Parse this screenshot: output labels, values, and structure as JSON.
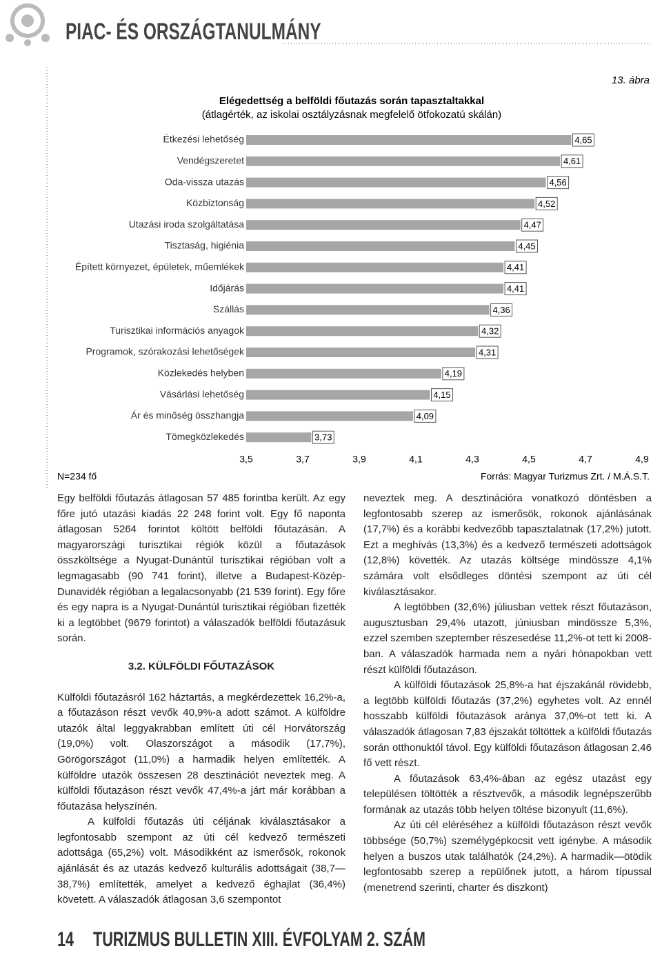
{
  "header": {
    "section": "PIAC- ÉS ORSZÁGTANULMÁNY"
  },
  "chart_data": {
    "type": "bar",
    "orientation": "horizontal",
    "figure_label": "13. ábra",
    "title": "Elégedettség a belföldi főutazás során tapasztaltakkal",
    "subtitle": "(átlagérték, az iskolai osztályzásnak megfelelő ötfokozatú skálán)",
    "categories": [
      "Étkezési lehetőség",
      "Vendégszeretet",
      "Oda-vissza utazás",
      "Közbiztonság",
      "Utazási iroda szolgáltatása",
      "Tisztaság, higiénia",
      "Épített környezet, épületek, műemlékek",
      "Időjárás",
      "Szállás",
      "Turisztikai információs anyagok",
      "Programok, szórakozási lehetőségek",
      "Közlekedés helyben",
      "Vásárlási lehetőség",
      "Ár és minőség összhangja",
      "Tömegközlekedés"
    ],
    "values": [
      4.65,
      4.61,
      4.56,
      4.52,
      4.47,
      4.45,
      4.41,
      4.41,
      4.36,
      4.32,
      4.31,
      4.19,
      4.15,
      4.09,
      3.73
    ],
    "value_labels": [
      "4,65",
      "4,61",
      "4,56",
      "4,52",
      "4,47",
      "4,45",
      "4,41",
      "4,41",
      "4,36",
      "4,32",
      "4,31",
      "4,19",
      "4,15",
      "4,09",
      "3,73"
    ],
    "color": "#a6a6a6",
    "xlim": [
      3.5,
      4.9
    ],
    "xticks": [
      {
        "value": 3.5,
        "label": "3,5"
      },
      {
        "value": 3.7,
        "label": "3,7"
      },
      {
        "value": 3.9,
        "label": "3,9"
      },
      {
        "value": 4.1,
        "label": "4,1"
      },
      {
        "value": 4.3,
        "label": "4,3"
      },
      {
        "value": 4.5,
        "label": "4,5"
      },
      {
        "value": 4.7,
        "label": "4,7"
      },
      {
        "value": 4.9,
        "label": "4,9"
      }
    ],
    "grid": false,
    "note": "N=234 fő",
    "source": "Forrás: Magyar Turizmus Zrt. / M.Á.S.T."
  },
  "left_column": {
    "paragraphs": [
      "Egy belföldi főutazás átlagosan 57 485 forintba került. Az egy főre jutó utazási kiadás 22 248 forint volt. Egy fő naponta átlagosan 5264 forintot költött belföldi főutazásán. A magyarországi turisztikai régiók közül a főutazások összköltsége a Nyugat-Dunántúl turisztikai régióban volt a legmagasabb (90 741 forint), illetve a Budapest-Közép-Dunavidék régióban a legalacsonyabb (21 539 forint). Egy főre és egy napra is a Nyugat-Dunántúl turisztikai régióban fizették ki a legtöbbet (9679 forintot) a válaszadók belföldi főutazásuk során."
    ],
    "heading": "3.2. KÜLFÖLDI FŐUTAZÁSOK",
    "paragraphs_after": [
      "Külföldi főutazásról 162 háztartás, a megkérdezettek 16,2%-a, a főutazáson részt vevők 40,9%-a adott számot. A külföldre utazók által leggyakrabban említett úti cél Horvátország (19,0%) volt. Olaszországot a második (17,7%), Görögországot (11,0%) a harmadik helyen említették. A külföldre utazók összesen 28 desztinációt neveztek meg. A külföldi főutazáson részt vevők 47,4%-a járt már korábban a főutazása helyszínén.",
      "A külföldi főutazás úti céljának kiválasztásakor a legfontosabb szempont az úti cél kedvező természeti adottsága (65,2%) volt. Másodikként az ismerősök, rokonok ajánlását és az utazás kedvező kulturális adottságait (38,7—38,7%) említették, amelyet a kedvező éghajlat (36,4%) követett. A válaszadók átlagosan 3,6 szempontot"
    ]
  },
  "right_column": {
    "paragraphs": [
      "neveztek meg. A desztinációra vonatkozó döntésben a legfontosabb szerep az ismerősök, rokonok ajánlásának (17,7%) és a korábbi kedvezőbb tapasztalatnak (17,2%) jutott. Ezt a meghívás (13,3%) és a kedvező természeti adottságok (12,8%) követték. Az utazás költsége mindössze 4,1% számára volt elsődleges döntési szempont az úti cél kiválasztásakor.",
      "A legtöbben (32,6%) júliusban vettek részt főutazáson, augusztusban 29,4% utazott, júniusban mindössze 5,3%, ezzel szemben szeptember részesedése 11,2%-ot tett ki 2008-ban. A válaszadók harmada nem a nyári hónapokban vett részt külföldi főutazáson.",
      "A külföldi főutazások 25,8%-a hat éjszakánál rövidebb, a legtöbb külföldi főutazás (37,2%) egyhetes volt. Az ennél hosszabb külföldi főutazások aránya 37,0%-ot tett ki. A válaszadók átlagosan 7,83 éjszakát töltöttek a külföldi főutazás során otthonuktól távol. Egy külföldi főutazáson átlagosan 2,46 fő vett részt.",
      "A főutazások 63,4%-ában az egész utazást egy településen töltötték a résztvevők, a második legnépszerűbb formának az utazás több helyen töltése bizonyult (11,6%).",
      "Az úti cél eléréséhez a külföldi főutazáson részt vevők többsége (50,7%) személygépkocsit vett igénybe. A második helyen a buszos utak találhatók (24,2%). A harmadik—ötödik legfontosabb szerep a repülőnek jutott, a három típussal (menetrend szerinti, charter és diszkont)"
    ]
  },
  "footer": {
    "page": "14",
    "publication": "TURIZMUS BULLETIN XIII. ÉVFOLYAM 2. SZÁM"
  }
}
